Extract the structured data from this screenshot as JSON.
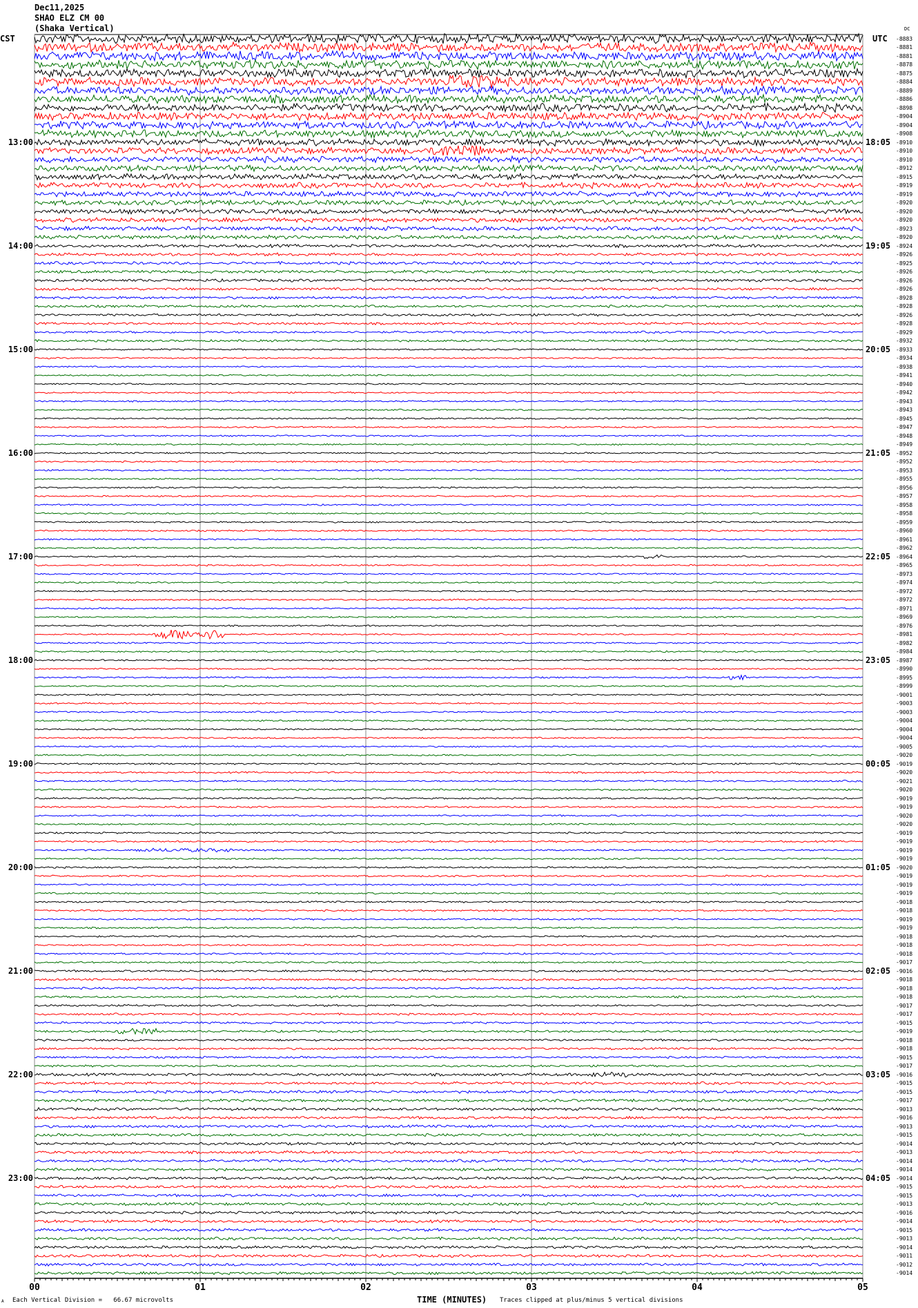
{
  "header": {
    "date": "Dec11,2025",
    "station": "SHAO ELZ CM 00",
    "name": "(Shaka Vertical)",
    "left_zone": "CST",
    "right_zone": "UTC",
    "dc_label": "DC"
  },
  "chart_data": {
    "type": "line",
    "subtype": "helicorder",
    "trace_colors": [
      "#000000",
      "#ff0000",
      "#0000ff",
      "#007000"
    ],
    "gridline_color": "#888888",
    "minutes_per_row": 5,
    "xlabel": "TIME (MINUTES)",
    "xlim": [
      0,
      5
    ],
    "x_ticks": [
      "00",
      "01",
      "02",
      "03",
      "04",
      "05"
    ],
    "left_time_labels": [
      "13:00",
      "14:00",
      "15:00",
      "16:00",
      "17:00",
      "18:00",
      "19:00",
      "20:00",
      "21:00",
      "22:00",
      "23:00"
    ],
    "right_time_labels": [
      "18:05",
      "19:05",
      "20:05",
      "21:05",
      "22:05",
      "23:05",
      "00:05",
      "01:05",
      "02:05",
      "03:05",
      "04:05"
    ],
    "row_offsets": [
      "-8883",
      "-8881",
      "-8881",
      "-8878",
      "-8875",
      "-8884",
      "-8889",
      "-8886",
      "-8898",
      "-8904",
      "-8904",
      "-8908",
      "-8910",
      "-8910",
      "-8910",
      "-8912",
      "-8915",
      "-8919",
      "-8919",
      "-8920",
      "-8920",
      "-8920",
      "-8923",
      "-8920",
      "-8924",
      "-8926",
      "-8925",
      "-8926",
      "-8926",
      "-8926",
      "-8928",
      "-8928",
      "-8926",
      "-8928",
      "-8929",
      "-8932",
      "-8933",
      "-8934",
      "-8938",
      "-8941",
      "-8940",
      "-8942",
      "-8943",
      "-8943",
      "-8945",
      "-8947",
      "-8948",
      "-8949",
      "-8952",
      "-8952",
      "-8953",
      "-8955",
      "-8956",
      "-8957",
      "-8958",
      "-8958",
      "-8959",
      "-8960",
      "-8961",
      "-8962",
      "-8964",
      "-8965",
      "-8973",
      "-8974",
      "-8972",
      "-8972",
      "-8971",
      "-8969",
      "-8976",
      "-8981",
      "-8982",
      "-8984",
      "-8987",
      "-8990",
      "-8995",
      "-8999",
      "-9001",
      "-9003",
      "-9003",
      "-9004",
      "-9004",
      "-9004",
      "-9005",
      "-9020",
      "-9019",
      "-9020",
      "-9021",
      "-9020",
      "-9019",
      "-9019",
      "-9020",
      "-9020",
      "-9019",
      "-9019",
      "-9019",
      "-9019",
      "-9020",
      "-9019",
      "-9019",
      "-9019",
      "-9018",
      "-9018",
      "-9019",
      "-9019",
      "-9018",
      "-9018",
      "-9018",
      "-9017",
      "-9016",
      "-9018",
      "-9018",
      "-9018",
      "-9017",
      "-9017",
      "-9015",
      "-9019",
      "-9018",
      "-9018",
      "-9015",
      "-9017",
      "-9016",
      "-9015",
      "-9015",
      "-9017",
      "-9013",
      "-9016",
      "-9013",
      "-9015",
      "-9014",
      "-9013",
      "-9014",
      "-9014",
      "-9014",
      "-9015",
      "-9015",
      "-9013",
      "-9016",
      "-9014",
      "-9015",
      "-9013",
      "-9014",
      "-9011",
      "-9012",
      "-9014"
    ],
    "scale_note": "Each Vertical Division =   66.67 microvolts",
    "clip_note": "Traces clipped at plus/minus 5 vertical divisions",
    "corner_mark": "A"
  }
}
